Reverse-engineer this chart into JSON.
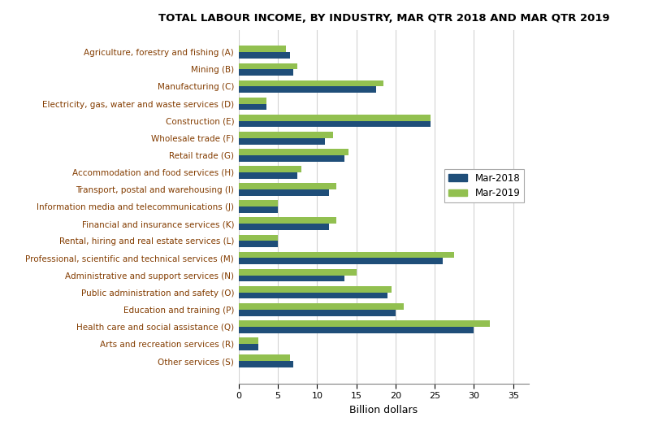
{
  "title": "TOTAL LABOUR INCOME, BY INDUSTRY, MAR QTR 2018 AND MAR QTR 2019",
  "categories": [
    "Agriculture, forestry and fishing (A)",
    "Mining (B)",
    "Manufacturing (C)",
    "Electricity, gas, water and waste services (D)",
    "Construction (E)",
    "Wholesale trade (F)",
    "Retail trade (G)",
    "Accommodation and food services (H)",
    "Transport, postal and warehousing (I)",
    "Information media and telecommunications (J)",
    "Financial and insurance services (K)",
    "Rental, hiring and real estate services (L)",
    "Professional, scientific and technical services (M)",
    "Administrative and support services (N)",
    "Public administration and safety (O)",
    "Education and training (P)",
    "Health care and social assistance (Q)",
    "Arts and recreation services (R)",
    "Other services (S)"
  ],
  "mar2018": [
    6.5,
    7.0,
    17.5,
    3.5,
    24.5,
    11.0,
    13.5,
    7.5,
    11.5,
    5.0,
    11.5,
    5.0,
    26.0,
    13.5,
    19.0,
    20.0,
    30.0,
    2.5,
    7.0
  ],
  "mar2019": [
    6.0,
    7.5,
    18.5,
    3.5,
    24.5,
    12.0,
    14.0,
    8.0,
    12.5,
    5.0,
    12.5,
    5.0,
    27.5,
    15.0,
    19.5,
    21.0,
    32.0,
    2.5,
    6.5
  ],
  "color_2018": "#1F4E79",
  "color_2019": "#92C050",
  "xlabel": "Billion dollars",
  "xlim": [
    0,
    37
  ],
  "xticks": [
    0,
    5,
    10,
    15,
    20,
    25,
    30,
    35
  ],
  "legend_labels": [
    "Mar-2018",
    "Mar-2019"
  ],
  "title_fontsize": 9.5,
  "label_fontsize": 7.5,
  "tick_fontsize": 8,
  "xlabel_fontsize": 9,
  "legend_fontsize": 8.5,
  "bar_height": 0.37,
  "figsize": [
    7.94,
    5.24
  ],
  "dpi": 100,
  "category_label_color": "#833C00",
  "grid_color": "#D3D3D3",
  "background_color": "#FFFFFF"
}
